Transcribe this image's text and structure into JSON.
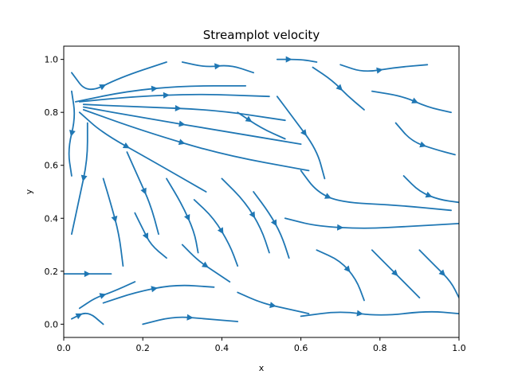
{
  "chart_data": {
    "type": "streamplot",
    "title": "Streamplot velocity",
    "xlabel": "x",
    "ylabel": "y",
    "xlim": [
      0.0,
      1.0
    ],
    "ylim": [
      -0.05,
      1.05
    ],
    "xticks": [
      0.0,
      0.2,
      0.4,
      0.6,
      0.8,
      1.0
    ],
    "yticks": [
      0.0,
      0.2,
      0.4,
      0.6,
      0.8,
      1.0
    ],
    "xtick_labels": [
      "0.0",
      "0.2",
      "0.4",
      "0.6",
      "0.8",
      "1.0"
    ],
    "ytick_labels": [
      "0.0",
      "0.2",
      "0.4",
      "0.6",
      "0.8",
      "1.0"
    ],
    "grid": false,
    "color": "#1f77b4",
    "series": [
      {
        "points": [
          [
            0.02,
            0.95
          ],
          [
            0.06,
            0.87
          ],
          [
            0.14,
            0.93
          ],
          [
            0.26,
            0.99
          ]
        ]
      },
      {
        "points": [
          [
            0.03,
            0.84
          ],
          [
            0.16,
            0.88
          ],
          [
            0.3,
            0.9
          ],
          [
            0.46,
            0.9
          ]
        ]
      },
      {
        "points": [
          [
            0.04,
            0.84
          ],
          [
            0.18,
            0.86
          ],
          [
            0.34,
            0.87
          ],
          [
            0.52,
            0.86
          ]
        ]
      },
      {
        "points": [
          [
            0.05,
            0.83
          ],
          [
            0.2,
            0.82
          ],
          [
            0.38,
            0.81
          ],
          [
            0.56,
            0.77
          ]
        ]
      },
      {
        "points": [
          [
            0.05,
            0.82
          ],
          [
            0.2,
            0.78
          ],
          [
            0.4,
            0.73
          ],
          [
            0.6,
            0.68
          ]
        ]
      },
      {
        "points": [
          [
            0.05,
            0.81
          ],
          [
            0.2,
            0.73
          ],
          [
            0.4,
            0.64
          ],
          [
            0.62,
            0.58
          ]
        ]
      },
      {
        "points": [
          [
            0.04,
            0.8
          ],
          [
            0.1,
            0.72
          ],
          [
            0.22,
            0.62
          ],
          [
            0.36,
            0.5
          ]
        ]
      },
      {
        "points": [
          [
            0.02,
            0.88
          ],
          [
            0.03,
            0.78
          ],
          [
            0.01,
            0.66
          ],
          [
            0.02,
            0.56
          ]
        ]
      },
      {
        "points": [
          [
            0.06,
            0.76
          ],
          [
            0.06,
            0.62
          ],
          [
            0.04,
            0.48
          ],
          [
            0.02,
            0.34
          ]
        ]
      },
      {
        "points": [
          [
            0.1,
            0.55
          ],
          [
            0.12,
            0.45
          ],
          [
            0.14,
            0.34
          ],
          [
            0.15,
            0.22
          ]
        ]
      },
      {
        "points": [
          [
            0.16,
            0.65
          ],
          [
            0.19,
            0.55
          ],
          [
            0.22,
            0.45
          ],
          [
            0.24,
            0.34
          ]
        ]
      },
      {
        "points": [
          [
            0.18,
            0.42
          ],
          [
            0.2,
            0.36
          ],
          [
            0.22,
            0.3
          ],
          [
            0.26,
            0.25
          ]
        ]
      },
      {
        "points": [
          [
            0.26,
            0.55
          ],
          [
            0.3,
            0.45
          ],
          [
            0.33,
            0.35
          ],
          [
            0.34,
            0.27
          ]
        ]
      },
      {
        "points": [
          [
            0.33,
            0.47
          ],
          [
            0.38,
            0.4
          ],
          [
            0.42,
            0.3
          ],
          [
            0.44,
            0.22
          ]
        ]
      },
      {
        "points": [
          [
            0.4,
            0.55
          ],
          [
            0.46,
            0.46
          ],
          [
            0.5,
            0.36
          ],
          [
            0.52,
            0.27
          ]
        ]
      },
      {
        "points": [
          [
            0.48,
            0.5
          ],
          [
            0.52,
            0.42
          ],
          [
            0.55,
            0.34
          ],
          [
            0.57,
            0.25
          ]
        ]
      },
      {
        "points": [
          [
            0.56,
            0.4
          ],
          [
            0.64,
            0.37
          ],
          [
            0.76,
            0.36
          ],
          [
            0.88,
            0.37
          ],
          [
            1.0,
            0.38
          ]
        ]
      },
      {
        "points": [
          [
            0.6,
            0.58
          ],
          [
            0.64,
            0.5
          ],
          [
            0.7,
            0.46
          ],
          [
            0.84,
            0.45
          ],
          [
            0.98,
            0.43
          ]
        ]
      },
      {
        "points": [
          [
            0.54,
            0.86
          ],
          [
            0.58,
            0.78
          ],
          [
            0.64,
            0.66
          ],
          [
            0.66,
            0.55
          ]
        ]
      },
      {
        "points": [
          [
            0.63,
            0.97
          ],
          [
            0.68,
            0.92
          ],
          [
            0.72,
            0.86
          ],
          [
            0.76,
            0.81
          ]
        ]
      },
      {
        "points": [
          [
            0.7,
            0.98
          ],
          [
            0.76,
            0.95
          ],
          [
            0.84,
            0.97
          ],
          [
            0.92,
            0.98
          ]
        ]
      },
      {
        "points": [
          [
            0.78,
            0.88
          ],
          [
            0.86,
            0.86
          ],
          [
            0.92,
            0.82
          ],
          [
            0.98,
            0.8
          ]
        ]
      },
      {
        "points": [
          [
            0.84,
            0.76
          ],
          [
            0.88,
            0.69
          ],
          [
            0.94,
            0.66
          ],
          [
            0.99,
            0.64
          ]
        ]
      },
      {
        "points": [
          [
            0.86,
            0.56
          ],
          [
            0.9,
            0.5
          ],
          [
            0.95,
            0.47
          ],
          [
            1.0,
            0.46
          ]
        ]
      },
      {
        "points": [
          [
            0.64,
            0.28
          ],
          [
            0.7,
            0.24
          ],
          [
            0.74,
            0.17
          ],
          [
            0.76,
            0.09
          ]
        ]
      },
      {
        "points": [
          [
            0.78,
            0.28
          ],
          [
            0.82,
            0.22
          ],
          [
            0.86,
            0.16
          ],
          [
            0.9,
            0.1
          ]
        ]
      },
      {
        "points": [
          [
            0.9,
            0.28
          ],
          [
            0.94,
            0.22
          ],
          [
            0.98,
            0.16
          ],
          [
            1.0,
            0.1
          ]
        ]
      },
      {
        "points": [
          [
            0.0,
            0.19
          ],
          [
            0.04,
            0.19
          ],
          [
            0.08,
            0.19
          ],
          [
            0.12,
            0.19
          ]
        ]
      },
      {
        "points": [
          [
            0.1,
            0.08
          ],
          [
            0.18,
            0.12
          ],
          [
            0.28,
            0.15
          ],
          [
            0.38,
            0.14
          ]
        ]
      },
      {
        "points": [
          [
            0.2,
            0.0
          ],
          [
            0.28,
            0.03
          ],
          [
            0.36,
            0.02
          ],
          [
            0.44,
            0.01
          ]
        ]
      },
      {
        "points": [
          [
            0.44,
            0.12
          ],
          [
            0.5,
            0.08
          ],
          [
            0.56,
            0.06
          ],
          [
            0.62,
            0.04
          ]
        ]
      },
      {
        "points": [
          [
            0.6,
            0.03
          ],
          [
            0.7,
            0.05
          ],
          [
            0.8,
            0.03
          ],
          [
            0.92,
            0.05
          ],
          [
            1.0,
            0.04
          ]
        ]
      },
      {
        "points": [
          [
            0.02,
            0.02
          ],
          [
            0.06,
            0.05
          ],
          [
            0.1,
            0.0
          ]
        ]
      },
      {
        "points": [
          [
            0.3,
            0.99
          ],
          [
            0.36,
            0.97
          ],
          [
            0.42,
            0.98
          ],
          [
            0.48,
            0.95
          ]
        ]
      },
      {
        "points": [
          [
            0.54,
            1.0
          ],
          [
            0.6,
            1.0
          ],
          [
            0.64,
            0.99
          ]
        ]
      },
      {
        "points": [
          [
            0.44,
            0.8
          ],
          [
            0.5,
            0.74
          ],
          [
            0.56,
            0.7
          ]
        ]
      },
      {
        "points": [
          [
            0.3,
            0.3
          ],
          [
            0.34,
            0.24
          ],
          [
            0.38,
            0.2
          ],
          [
            0.42,
            0.16
          ]
        ]
      },
      {
        "points": [
          [
            0.04,
            0.06
          ],
          [
            0.08,
            0.1
          ],
          [
            0.12,
            0.12
          ],
          [
            0.18,
            0.16
          ]
        ]
      }
    ]
  }
}
